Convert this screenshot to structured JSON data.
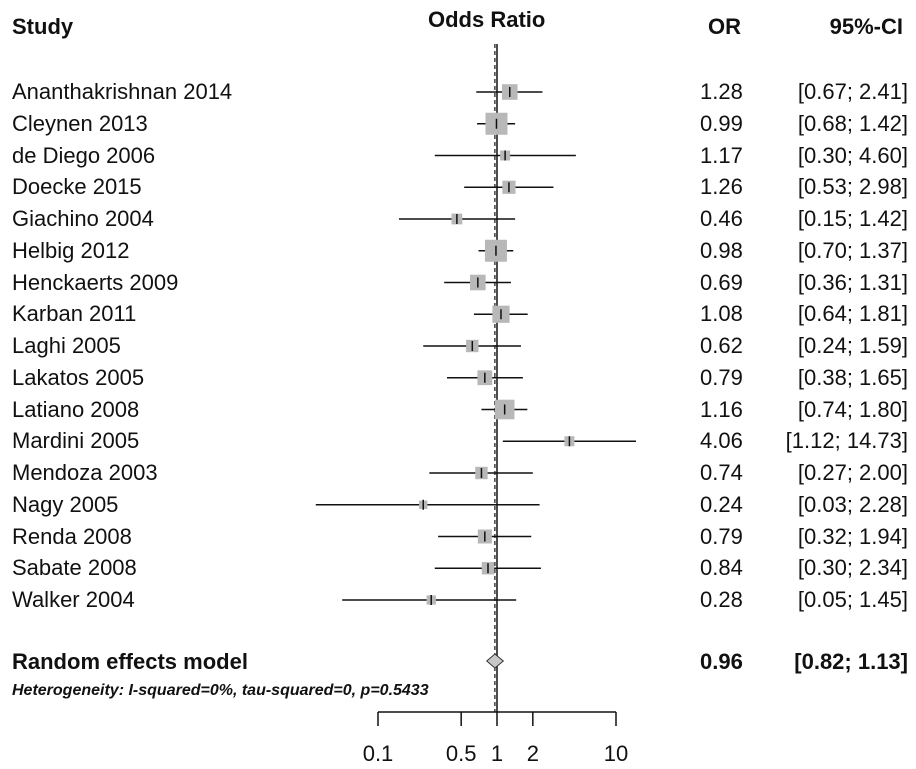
{
  "headers": {
    "study": "Study",
    "odds_ratio": "Odds Ratio",
    "or": "OR",
    "ci": "95%-CI"
  },
  "chart_data": {
    "type": "forest",
    "x_scale": "log",
    "xlim": [
      0.03,
      14.73
    ],
    "null_line": 1,
    "ticks": [
      0.1,
      0.5,
      1,
      2,
      10
    ],
    "tick_labels": [
      "0.1",
      "0.5",
      "1",
      "2",
      "10"
    ],
    "studies": [
      {
        "name": "Ananthakrishnan 2014",
        "or": 1.28,
        "lo": 0.67,
        "hi": 2.41,
        "or_text": "1.28",
        "ci_text": "[0.67;  2.41]",
        "weight": 0.6
      },
      {
        "name": "Cleynen 2013",
        "or": 0.99,
        "lo": 0.68,
        "hi": 1.42,
        "or_text": "0.99",
        "ci_text": "[0.68;  1.42]",
        "weight": 1.0
      },
      {
        "name": "de Diego 2006",
        "or": 1.17,
        "lo": 0.3,
        "hi": 4.6,
        "or_text": "1.17",
        "ci_text": "[0.30;  4.60]",
        "weight": 0.25
      },
      {
        "name": "Doecke 2015",
        "or": 1.26,
        "lo": 0.53,
        "hi": 2.98,
        "or_text": "1.26",
        "ci_text": "[0.53;  2.98]",
        "weight": 0.45
      },
      {
        "name": "Giachino 2004",
        "or": 0.46,
        "lo": 0.15,
        "hi": 1.42,
        "or_text": "0.46",
        "ci_text": "[0.15;  1.42]",
        "weight": 0.3
      },
      {
        "name": "Helbig 2012",
        "or": 0.98,
        "lo": 0.7,
        "hi": 1.37,
        "or_text": "0.98",
        "ci_text": "[0.70;  1.37]",
        "weight": 1.0
      },
      {
        "name": "Henckaerts 2009",
        "or": 0.69,
        "lo": 0.36,
        "hi": 1.31,
        "or_text": "0.69",
        "ci_text": "[0.36;  1.31]",
        "weight": 0.6
      },
      {
        "name": "Karban 2011",
        "or": 1.08,
        "lo": 0.64,
        "hi": 1.81,
        "or_text": "1.08",
        "ci_text": "[0.64;  1.81]",
        "weight": 0.7
      },
      {
        "name": "Laghi 2005",
        "or": 0.62,
        "lo": 0.24,
        "hi": 1.59,
        "or_text": "0.62",
        "ci_text": "[0.24;  1.59]",
        "weight": 0.4
      },
      {
        "name": "Lakatos 2005",
        "or": 0.79,
        "lo": 0.38,
        "hi": 1.65,
        "or_text": "0.79",
        "ci_text": "[0.38;  1.65]",
        "weight": 0.55
      },
      {
        "name": "Latiano 2008",
        "or": 1.16,
        "lo": 0.74,
        "hi": 1.8,
        "or_text": "1.16",
        "ci_text": "[0.74;  1.80]",
        "weight": 0.85
      },
      {
        "name": "Mardini 2005",
        "or": 4.06,
        "lo": 1.12,
        "hi": 14.73,
        "or_text": "4.06",
        "ci_text": "[1.12; 14.73]",
        "weight": 0.25
      },
      {
        "name": "Mendoza 2003",
        "or": 0.74,
        "lo": 0.27,
        "hi": 2.0,
        "or_text": "0.74",
        "ci_text": "[0.27;  2.00]",
        "weight": 0.4
      },
      {
        "name": "Nagy 2005",
        "or": 0.24,
        "lo": 0.03,
        "hi": 2.28,
        "or_text": "0.24",
        "ci_text": "[0.03;  2.28]",
        "weight": 0.15
      },
      {
        "name": "Renda 2008",
        "or": 0.79,
        "lo": 0.32,
        "hi": 1.94,
        "or_text": "0.79",
        "ci_text": "[0.32;  1.94]",
        "weight": 0.5
      },
      {
        "name": "Sabate 2008",
        "or": 0.84,
        "lo": 0.3,
        "hi": 2.34,
        "or_text": "0.84",
        "ci_text": "[0.30;  2.34]",
        "weight": 0.4
      },
      {
        "name": "Walker 2004",
        "or": 0.28,
        "lo": 0.05,
        "hi": 1.45,
        "or_text": "0.28",
        "ci_text": "[0.05;  1.45]",
        "weight": 0.2
      }
    ],
    "summary": {
      "name": "Random effects model",
      "or": 0.96,
      "lo": 0.82,
      "hi": 1.13,
      "or_text": "0.96",
      "ci_text": "[0.82;  1.13]"
    },
    "heterogeneity": "Heterogeneity: I-squared=0%, tau-squared=0, p=0.5433",
    "colors": {
      "box": "#b8b8b8",
      "line": "#111111",
      "diamond": "#c8c8c8"
    }
  }
}
